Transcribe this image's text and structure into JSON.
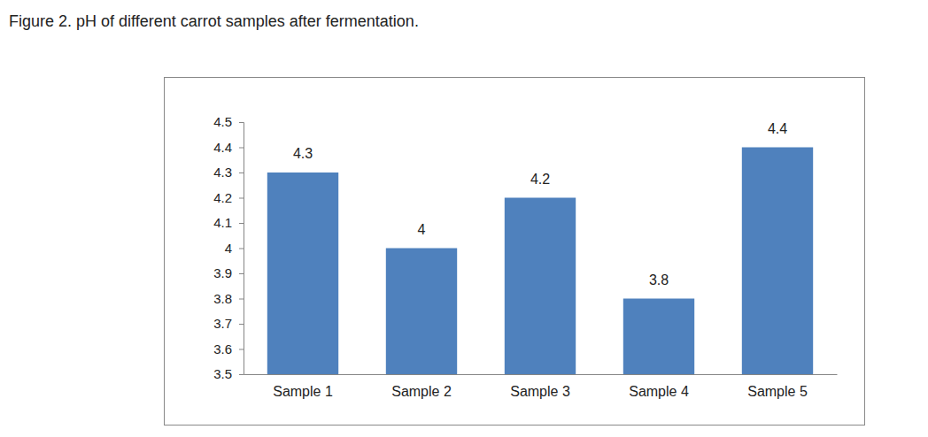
{
  "chart_data": {
    "type": "bar",
    "title": "Figure 2. pH of different carrot samples after fermentation.",
    "categories": [
      "Sample 1",
      "Sample 2",
      "Sample 3",
      "Sample 4",
      "Sample 5"
    ],
    "values": [
      4.3,
      4,
      4.2,
      3.8,
      4.4
    ],
    "color": "#4f81bd",
    "ylim": [
      3.5,
      4.5
    ],
    "yticks": [
      3.5,
      3.6,
      3.7,
      3.8,
      3.9,
      4,
      4.1,
      4.2,
      4.3,
      4.4,
      4.5
    ],
    "grid": false,
    "data_labels": true
  }
}
